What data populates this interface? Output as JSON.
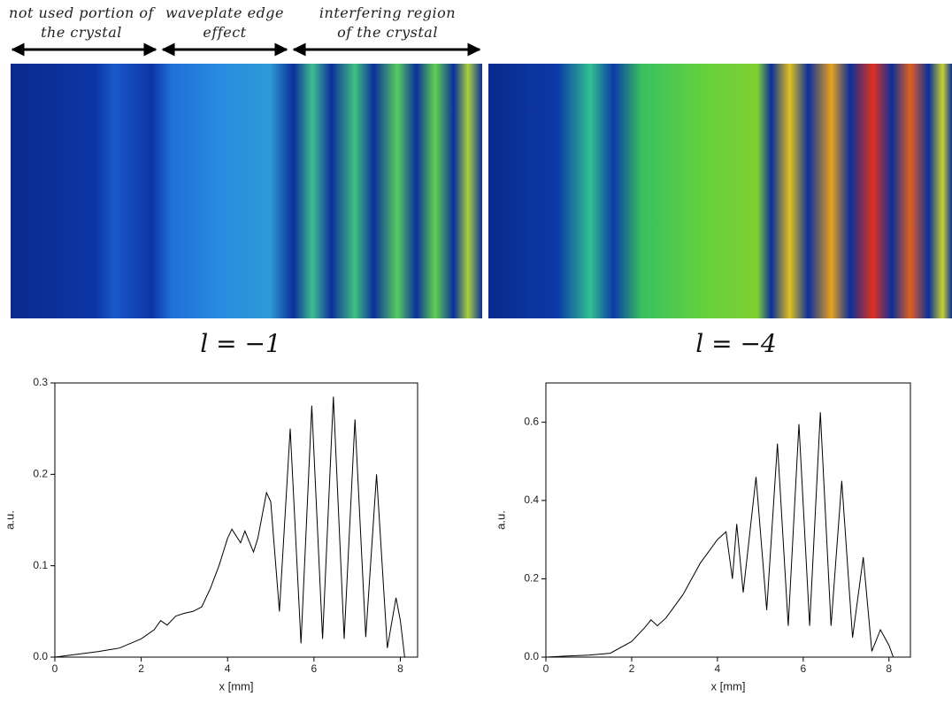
{
  "annotations": [
    {
      "lines": [
        "not used portion of",
        "the crystal"
      ]
    },
    {
      "lines": [
        "waveplate edge",
        "effect"
      ]
    },
    {
      "lines": [
        "interfering region",
        "of the crystal"
      ]
    }
  ],
  "image_labels": [
    "l = −1",
    "l = −4"
  ],
  "chart_data": [
    {
      "type": "line",
      "xlabel": "x [mm]",
      "ylabel": "a.u.",
      "color": "#000000",
      "x": [
        0,
        0.5,
        1,
        1.5,
        2,
        2.3,
        2.45,
        2.6,
        2.8,
        3,
        3.2,
        3.4,
        3.6,
        3.8,
        4,
        4.1,
        4.3,
        4.4,
        4.6,
        4.7,
        4.9,
        5.0,
        5.2,
        5.45,
        5.7,
        5.95,
        6.2,
        6.45,
        6.7,
        6.95,
        7.2,
        7.45,
        7.7,
        7.9,
        8.0,
        8.1
      ],
      "values": [
        0,
        0.003,
        0.006,
        0.01,
        0.02,
        0.03,
        0.04,
        0.035,
        0.045,
        0.048,
        0.05,
        0.055,
        0.075,
        0.1,
        0.13,
        0.14,
        0.125,
        0.138,
        0.115,
        0.13,
        0.18,
        0.17,
        0.05,
        0.25,
        0.015,
        0.275,
        0.02,
        0.285,
        0.02,
        0.26,
        0.022,
        0.2,
        0.01,
        0.065,
        0.04,
        0
      ],
      "xlim": [
        0,
        8.4
      ],
      "ylim": [
        0,
        0.3
      ],
      "xticks": [
        0,
        2,
        4,
        6,
        8
      ],
      "yticks": [
        {
          "value": 0,
          "label": "0.0"
        },
        0.1,
        0.2,
        0.3
      ]
    },
    {
      "type": "line",
      "xlabel": "x [mm]",
      "ylabel": "a.u.",
      "color": "#000000",
      "x": [
        0,
        0.5,
        1,
        1.5,
        2,
        2.3,
        2.45,
        2.6,
        2.8,
        3,
        3.2,
        3.4,
        3.6,
        3.8,
        4.0,
        4.2,
        4.35,
        4.45,
        4.6,
        4.9,
        5.15,
        5.4,
        5.65,
        5.9,
        6.15,
        6.4,
        6.65,
        6.9,
        7.15,
        7.4,
        7.6,
        7.8,
        8.0,
        8.1
      ],
      "values": [
        0,
        0.003,
        0.005,
        0.01,
        0.04,
        0.075,
        0.095,
        0.08,
        0.1,
        0.13,
        0.16,
        0.2,
        0.24,
        0.27,
        0.3,
        0.32,
        0.2,
        0.34,
        0.165,
        0.46,
        0.12,
        0.545,
        0.08,
        0.595,
        0.08,
        0.625,
        0.08,
        0.45,
        0.05,
        0.255,
        0.015,
        0.07,
        0.03,
        0
      ],
      "xlim": [
        0,
        8.5
      ],
      "ylim": [
        0,
        0.7
      ],
      "xticks": [
        0,
        2,
        4,
        6,
        8
      ],
      "yticks": [
        {
          "value": 0,
          "label": "0.0"
        },
        0.2,
        0.4,
        0.6
      ]
    }
  ]
}
